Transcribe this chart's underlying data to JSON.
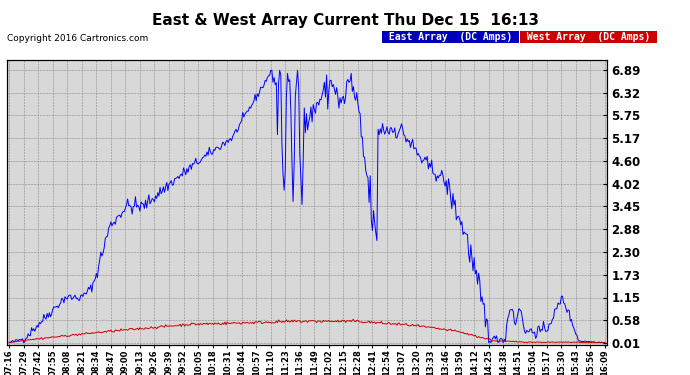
{
  "title": "East & West Array Current Thu Dec 15  16:13",
  "copyright": "Copyright 2016 Cartronics.com",
  "legend_east": "East Array  (DC Amps)",
  "legend_west": "West Array  (DC Amps)",
  "east_color": "#0000ff",
  "west_color": "#cc0000",
  "legend_east_bg": "#0000bb",
  "legend_west_bg": "#cc0000",
  "yticks": [
    0.01,
    0.58,
    1.15,
    1.73,
    2.3,
    2.88,
    3.45,
    4.02,
    4.6,
    5.17,
    5.75,
    6.32,
    6.89
  ],
  "ylim": [
    -0.05,
    7.15
  ],
  "bg_color": "#d8d8d8",
  "grid_color": "#888888",
  "xtick_labels": [
    "07:16",
    "07:29",
    "07:42",
    "07:55",
    "08:08",
    "08:21",
    "08:34",
    "08:47",
    "09:00",
    "09:13",
    "09:26",
    "09:39",
    "09:52",
    "10:05",
    "10:18",
    "10:31",
    "10:44",
    "10:57",
    "11:10",
    "11:23",
    "11:36",
    "11:49",
    "12:02",
    "12:15",
    "12:28",
    "12:41",
    "12:54",
    "13:07",
    "13:20",
    "13:33",
    "13:46",
    "13:59",
    "14:12",
    "14:25",
    "14:38",
    "14:51",
    "15:04",
    "15:17",
    "15:30",
    "15:43",
    "15:56",
    "16:09"
  ]
}
